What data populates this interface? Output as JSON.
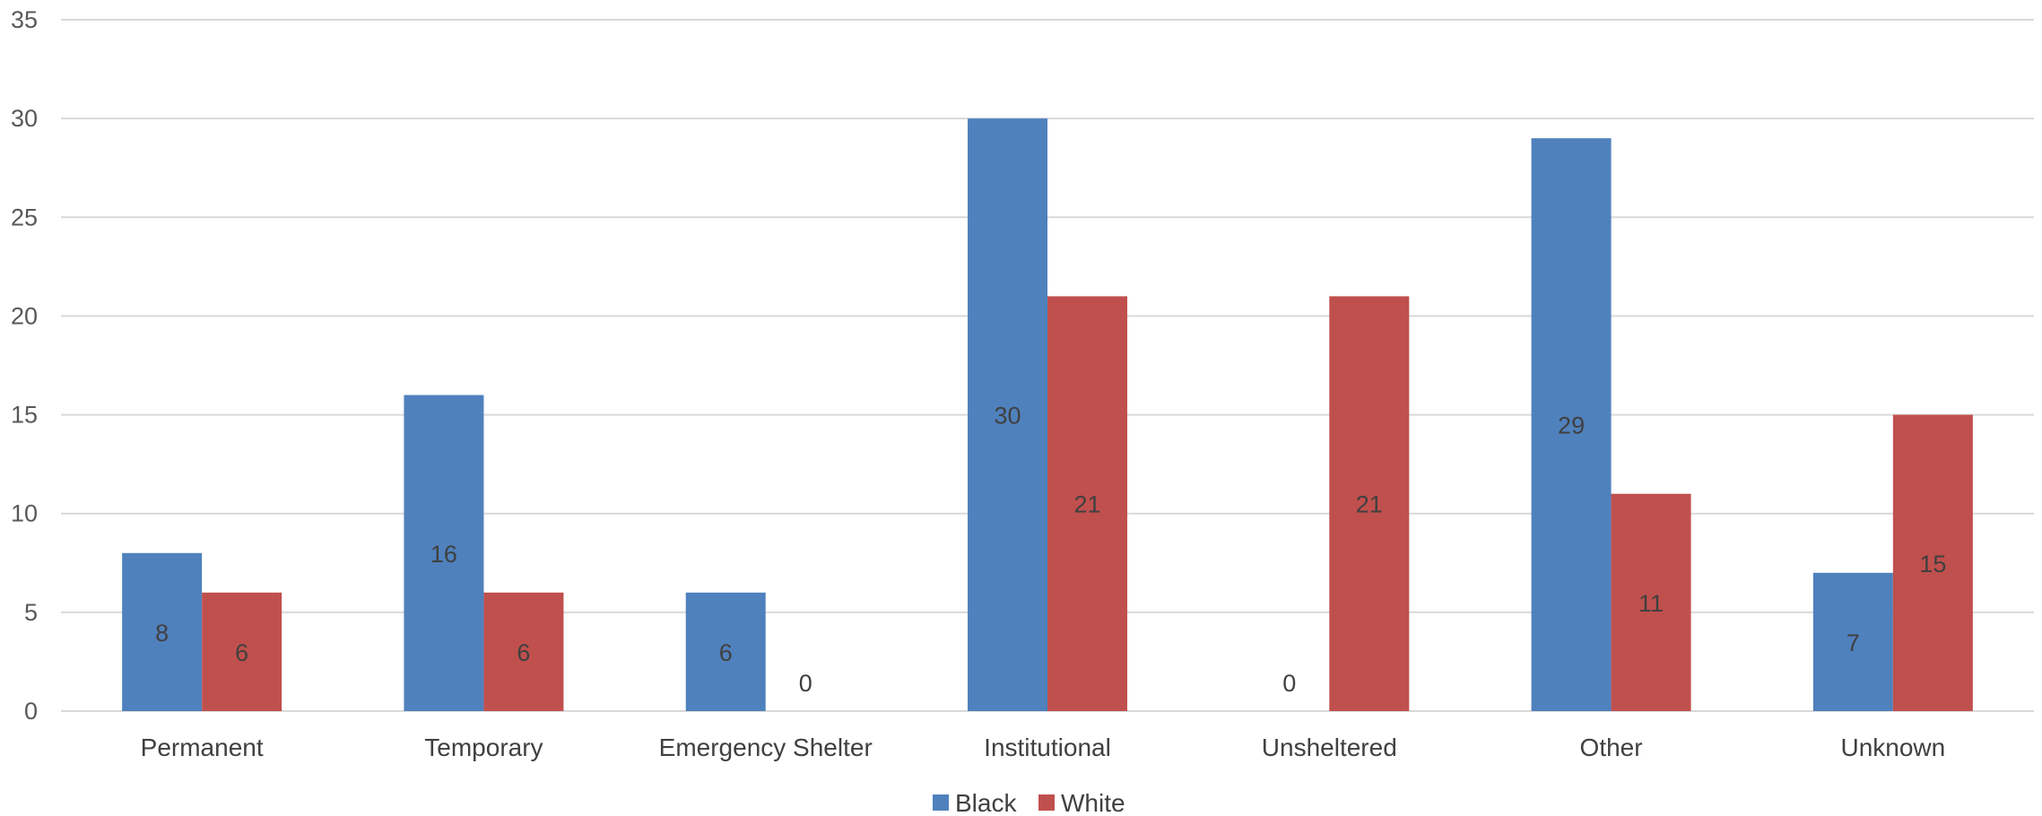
{
  "chart_data": {
    "type": "bar",
    "categories": [
      "Permanent",
      "Temporary",
      "Emergency Shelter",
      "Institutional",
      "Unsheltered",
      "Other",
      "Unknown"
    ],
    "series": [
      {
        "name": "Black",
        "values": [
          8,
          16,
          6,
          30,
          0,
          29,
          7
        ],
        "color": "#4f81bd"
      },
      {
        "name": "White",
        "values": [
          6,
          6,
          0,
          21,
          21,
          11,
          15
        ],
        "color": "#c0504d"
      }
    ],
    "ylim": [
      0,
      35
    ],
    "yticks": [
      0,
      5,
      10,
      15,
      20,
      25,
      30,
      35
    ],
    "grid": true,
    "legend_position": "bottom",
    "data_labels": true
  }
}
